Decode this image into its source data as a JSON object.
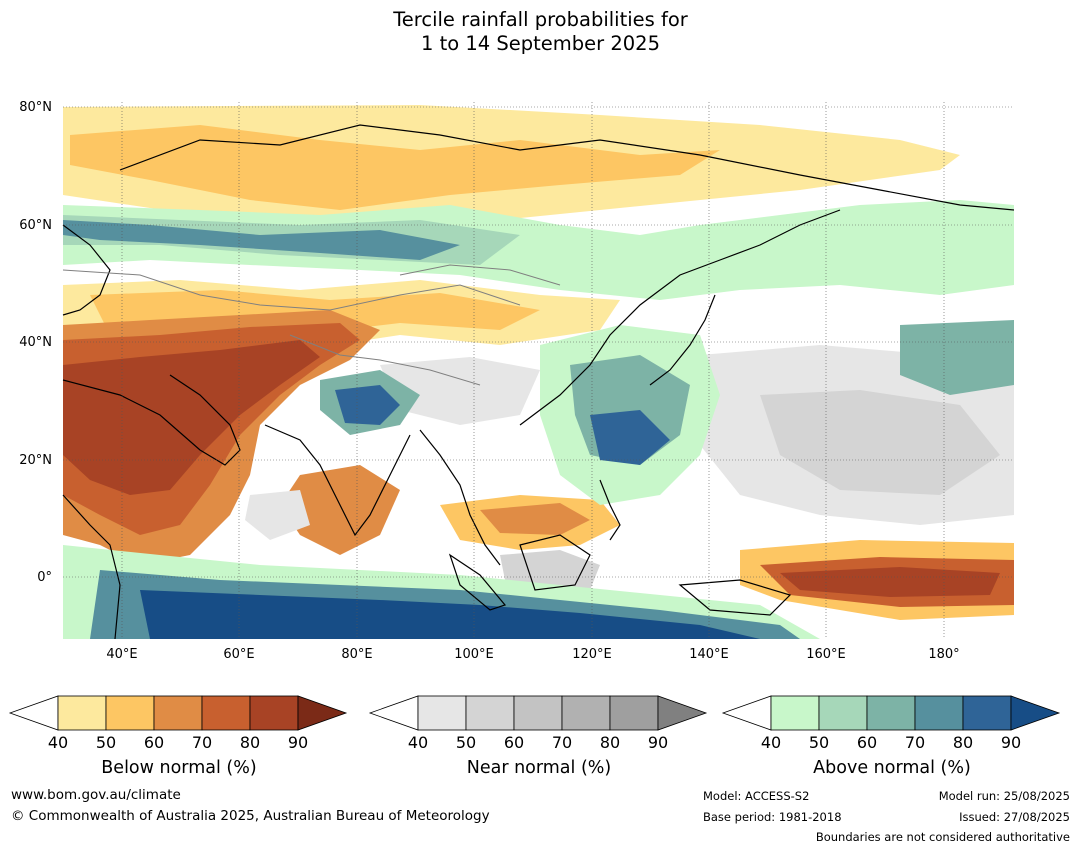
{
  "title_line1": "Tercile rainfall probabilities for",
  "title_line2": "1 to 14 September 2025",
  "map": {
    "lat_labels": [
      "80°N",
      "60°N",
      "40°N",
      "20°N",
      "0°"
    ],
    "lon_labels": [
      "40°E",
      "60°E",
      "80°E",
      "100°E",
      "120°E",
      "140°E",
      "160°E",
      "180°"
    ],
    "extent": {
      "lon_min": 30,
      "lon_max": 192,
      "lat_min": -10,
      "lat_max": 81
    }
  },
  "colorbars": {
    "below": {
      "title": "Below normal (%)",
      "ticks": [
        "40",
        "50",
        "60",
        "70",
        "80",
        "90"
      ],
      "colors": [
        "#ffffff",
        "#fde99e",
        "#fdc663",
        "#e08c45",
        "#c8602f",
        "#a84325",
        "#7b2a17"
      ]
    },
    "near": {
      "title": "Near normal (%)",
      "ticks": [
        "40",
        "50",
        "60",
        "70",
        "80",
        "90"
      ],
      "colors": [
        "#ffffff",
        "#e6e6e6",
        "#d4d4d4",
        "#c3c3c3",
        "#b1b1b1",
        "#9f9f9f",
        "#808080"
      ]
    },
    "above": {
      "title": "Above normal (%)",
      "ticks": [
        "40",
        "50",
        "60",
        "70",
        "80",
        "90"
      ],
      "colors": [
        "#ffffff",
        "#c8f7ca",
        "#a6d7b9",
        "#7db3a6",
        "#56909e",
        "#2f6497",
        "#174d86"
      ]
    }
  },
  "footer": {
    "website": "www.bom.gov.au/climate",
    "copyright": "© Commonwealth of Australia 2025, Australian Bureau of Meteorology",
    "model": "Model: ACCESS-S2",
    "base_period": "Base period: 1981-2018",
    "model_run": "Model run: 25/08/2025",
    "issued": "Issued: 27/08/2025",
    "disclaimer": "Boundaries are not considered authoritative"
  }
}
